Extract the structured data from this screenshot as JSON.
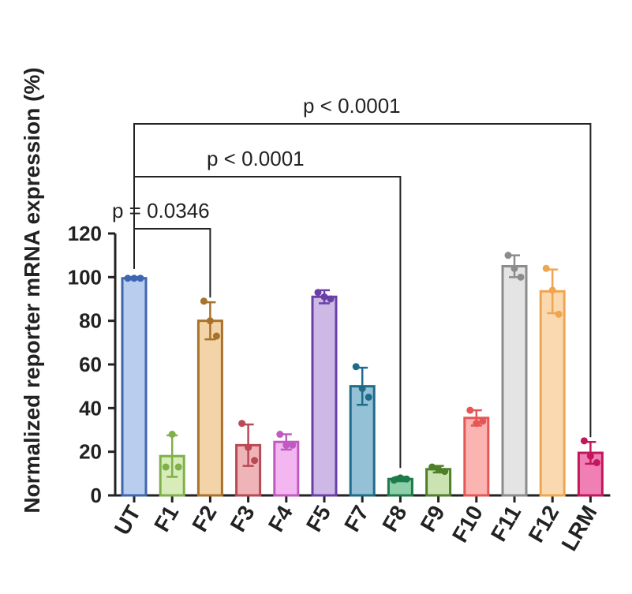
{
  "chart_data": {
    "type": "bar",
    "title": "",
    "xlabel": "",
    "ylabel": "Normalized reporter mRNA expression (%)",
    "ylim": [
      0,
      120
    ],
    "yticks": [
      "0",
      "20",
      "40",
      "60",
      "80",
      "100",
      "120"
    ],
    "grid": false,
    "categories": [
      "UT",
      "F1",
      "F2",
      "F3",
      "F4",
      "F5",
      "F7",
      "F8",
      "F9",
      "F10",
      "F11",
      "F12",
      "LRM"
    ],
    "values": [
      99.5,
      18,
      80,
      23,
      24.5,
      91,
      50,
      7.5,
      12,
      35.5,
      105,
      93.5,
      19.5
    ],
    "errors": [
      0.5,
      9.5,
      8.5,
      9.5,
      3.5,
      3,
      8.5,
      1,
      1.5,
      3.5,
      5,
      10,
      5
    ],
    "points": [
      [
        99.5,
        99.5,
        99.5
      ],
      [
        13,
        28,
        13
      ],
      [
        89,
        80,
        73
      ],
      [
        33,
        22,
        16
      ],
      [
        28,
        23,
        23
      ],
      [
        93,
        91,
        90
      ],
      [
        59,
        49,
        45
      ],
      [
        7,
        8,
        7.5
      ],
      [
        13,
        12,
        11
      ],
      [
        39,
        33,
        34
      ],
      [
        110,
        104,
        100
      ],
      [
        104,
        94,
        83
      ],
      [
        25,
        18,
        15
      ]
    ],
    "colors": {
      "fill": [
        "#b9cdee",
        "#d7ecb8",
        "#f3d3a8",
        "#eeb4b8",
        "#f3b6f1",
        "#cdb8e6",
        "#94c1d6",
        "#8ccfaa",
        "#cbe3b0",
        "#fbb4b2",
        "#e4e4e4",
        "#fbd9b0",
        "#f07fb4"
      ],
      "stroke": [
        "#3f66b0",
        "#7fb04a",
        "#a8722a",
        "#b84a55",
        "#c05ac0",
        "#6a40a8",
        "#1e6b8a",
        "#1f7a4a",
        "#4f7f28",
        "#e55656",
        "#8c8c8c",
        "#f0a650",
        "#c2185b"
      ]
    },
    "annotations": [
      {
        "text": "p = 0.0346",
        "from": "UT",
        "to": "F2"
      },
      {
        "text": "p < 0.0001",
        "from": "UT",
        "to": "F8"
      },
      {
        "text": "p < 0.0001",
        "from": "UT",
        "to": "LRM"
      }
    ]
  }
}
